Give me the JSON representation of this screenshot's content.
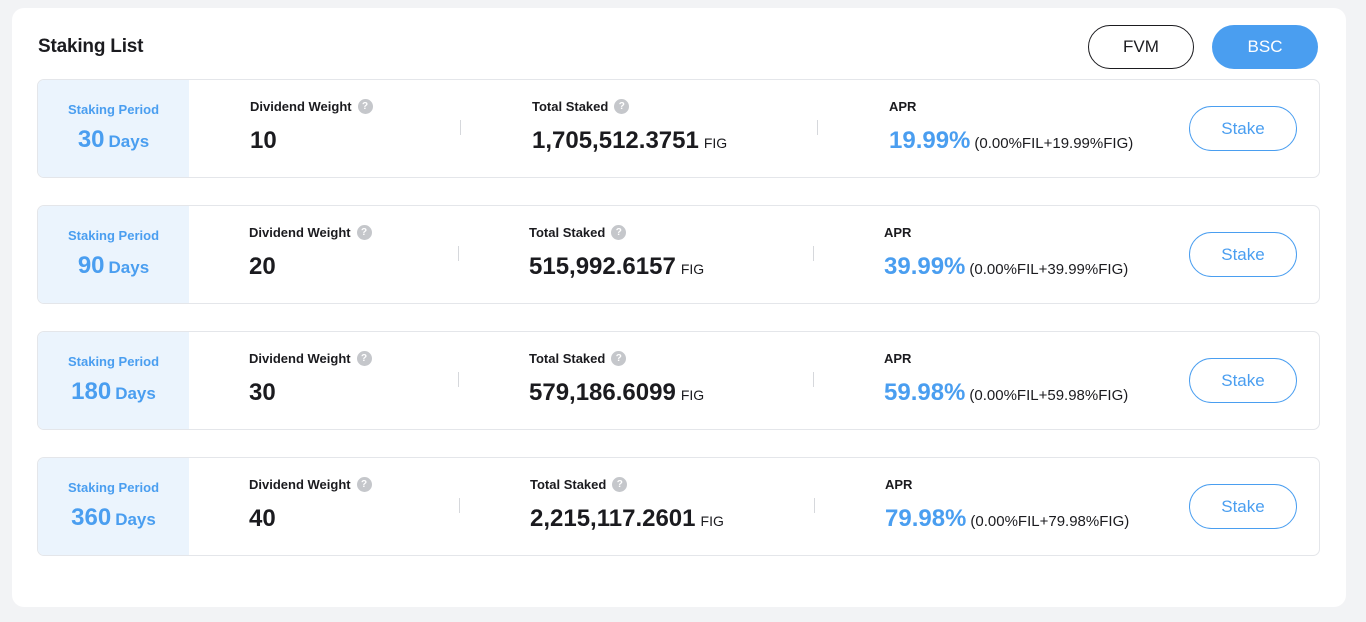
{
  "header": {
    "title": "Staking List",
    "networks": [
      {
        "label": "FVM",
        "active": false
      },
      {
        "label": "BSC",
        "active": true
      }
    ]
  },
  "labels": {
    "staking_period": "Staking Period",
    "days_unit": "Days",
    "dividend_weight": "Dividend Weight",
    "total_staked": "Total Staked",
    "apr": "APR",
    "token_unit": "FIG",
    "help_glyph": "?",
    "stake_button": "Stake"
  },
  "rows": [
    {
      "period": "30",
      "dividend_weight": "10",
      "total_staked": "1,705,512.3751",
      "apr": "19.99%",
      "apr_breakdown": "(0.00%FIL+19.99%FIG)"
    },
    {
      "period": "90",
      "dividend_weight": "20",
      "total_staked": "515,992.6157",
      "apr": "39.99%",
      "apr_breakdown": "(0.00%FIL+39.99%FIG)"
    },
    {
      "period": "180",
      "dividend_weight": "30",
      "total_staked": "579,186.6099",
      "apr": "59.98%",
      "apr_breakdown": "(0.00%FIL+59.98%FIG)"
    },
    {
      "period": "360",
      "dividend_weight": "40",
      "total_staked": "2,215,117.2601",
      "apr": "79.98%",
      "apr_breakdown": "(0.00%FIL+79.98%FIG)"
    }
  ],
  "colors": {
    "accent": "#4a9ef0",
    "period_bg": "#ebf4fd",
    "page_bg": "#f2f3f5"
  },
  "icons": {
    "help": "question-mark-circle-icon"
  }
}
